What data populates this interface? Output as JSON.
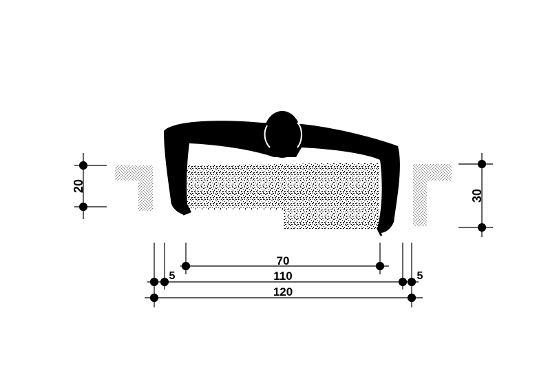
{
  "diagram": {
    "colors": {
      "ink": "#000000",
      "paper": "#ffffff",
      "stipple": "#9a9a9a"
    },
    "left_depth": "20",
    "right_depth": "30",
    "width_inner": "70",
    "width_middle": "110",
    "width_outer": "120",
    "margin_left": "5",
    "margin_right": "5"
  }
}
